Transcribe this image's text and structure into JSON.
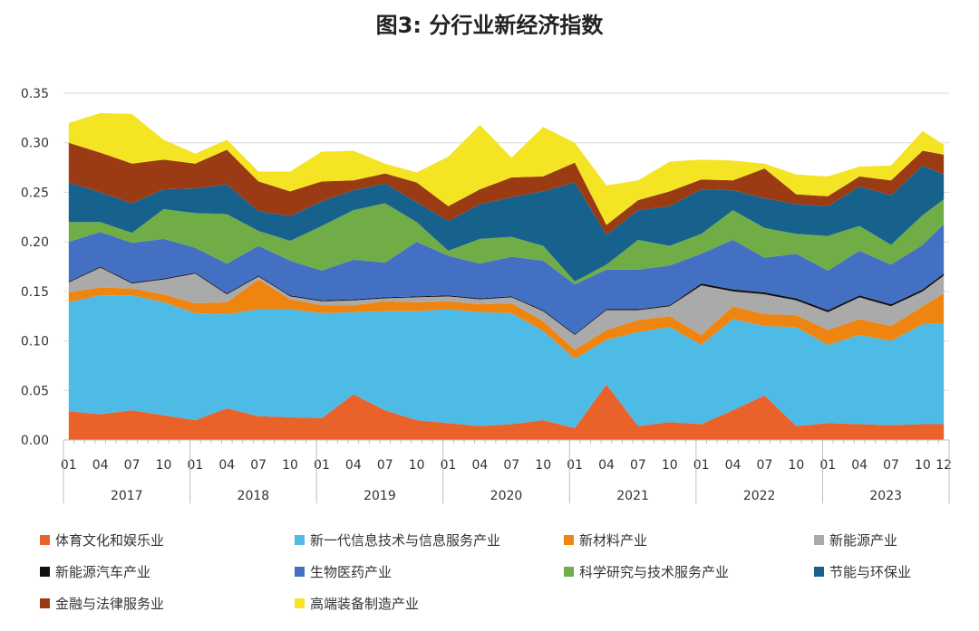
{
  "chart_data": {
    "type": "area",
    "stacked": true,
    "title": "图3: 分行业新经济指数",
    "ylim": [
      0,
      0.35
    ],
    "yticks": [
      "0.00",
      "0.05",
      "0.10",
      "0.15",
      "0.20",
      "0.25",
      "0.30",
      "0.35"
    ],
    "xtick_labels": [
      "01",
      "04",
      "07",
      "10",
      "01",
      "04",
      "07",
      "10",
      "01",
      "04",
      "07",
      "10",
      "01",
      "04",
      "07",
      "10",
      "01",
      "04",
      "07",
      "10",
      "01",
      "04",
      "07",
      "10",
      "01",
      "04",
      "07",
      "10",
      "12"
    ],
    "xtick_months": [
      0,
      3,
      6,
      9,
      12,
      15,
      18,
      21,
      24,
      27,
      30,
      33,
      36,
      39,
      42,
      45,
      48,
      51,
      54,
      57,
      60,
      63,
      66,
      69,
      72,
      75,
      78,
      81,
      83
    ],
    "years": [
      "2017",
      "2018",
      "2019",
      "2020",
      "2021",
      "2022",
      "2023"
    ],
    "grid": "horizontal",
    "legend_position": "bottom",
    "x_knots": [
      0,
      3,
      6,
      9,
      12,
      15,
      18,
      21,
      24,
      27,
      30,
      33,
      36,
      39,
      42,
      45,
      48,
      51,
      54,
      57,
      60,
      63,
      66,
      69,
      72,
      75,
      78,
      81,
      83
    ],
    "series": [
      {
        "name": "体育文化和娱乐业",
        "color": "#E8622A",
        "values": [
          0.029,
          0.026,
          0.03,
          0.025,
          0.02,
          0.032,
          0.024,
          0.023,
          0.022,
          0.046,
          0.03,
          0.02,
          0.017,
          0.014,
          0.016,
          0.02,
          0.012,
          0.056,
          0.014,
          0.018,
          0.016,
          0.03,
          0.045,
          0.014,
          0.017,
          0.016,
          0.015,
          0.016,
          0.016
        ]
      },
      {
        "name": "新一代信息技术与信息服务产业",
        "color": "#4EBAE6",
        "values": [
          0.11,
          0.12,
          0.116,
          0.114,
          0.108,
          0.095,
          0.108,
          0.109,
          0.106,
          0.083,
          0.1,
          0.11,
          0.115,
          0.115,
          0.112,
          0.09,
          0.07,
          0.045,
          0.095,
          0.096,
          0.08,
          0.092,
          0.07,
          0.1,
          0.079,
          0.09,
          0.085,
          0.101,
          0.102
        ]
      },
      {
        "name": "新材料产业",
        "color": "#EE8510",
        "values": [
          0.01,
          0.008,
          0.007,
          0.008,
          0.01,
          0.012,
          0.03,
          0.01,
          0.008,
          0.007,
          0.01,
          0.009,
          0.008,
          0.008,
          0.01,
          0.01,
          0.009,
          0.01,
          0.012,
          0.011,
          0.01,
          0.013,
          0.012,
          0.012,
          0.015,
          0.016,
          0.015,
          0.018,
          0.03
        ]
      },
      {
        "name": "新能源产业",
        "color": "#AAAAAA",
        "values": [
          0.01,
          0.02,
          0.005,
          0.015,
          0.03,
          0.008,
          0.003,
          0.003,
          0.004,
          0.005,
          0.003,
          0.005,
          0.005,
          0.005,
          0.006,
          0.01,
          0.015,
          0.02,
          0.01,
          0.01,
          0.05,
          0.015,
          0.02,
          0.015,
          0.018,
          0.022,
          0.02,
          0.015,
          0.018
        ]
      },
      {
        "name": "新能源汽车产业",
        "color": "#111111",
        "values": [
          0.001,
          0.001,
          0.001,
          0.001,
          0.001,
          0.001,
          0.001,
          0.001,
          0.001,
          0.001,
          0.001,
          0.001,
          0.001,
          0.001,
          0.001,
          0.001,
          0.001,
          0.001,
          0.001,
          0.001,
          0.002,
          0.002,
          0.002,
          0.002,
          0.002,
          0.002,
          0.002,
          0.002,
          0.002
        ]
      },
      {
        "name": "生物医药产业",
        "color": "#4470C4",
        "values": [
          0.04,
          0.035,
          0.04,
          0.04,
          0.025,
          0.03,
          0.03,
          0.035,
          0.03,
          0.04,
          0.035,
          0.055,
          0.04,
          0.035,
          0.04,
          0.05,
          0.05,
          0.04,
          0.04,
          0.04,
          0.03,
          0.05,
          0.035,
          0.045,
          0.04,
          0.045,
          0.04,
          0.045,
          0.05
        ]
      },
      {
        "name": "科学研究与技术服务产业",
        "color": "#70AD47",
        "values": [
          0.02,
          0.01,
          0.01,
          0.03,
          0.035,
          0.05,
          0.015,
          0.02,
          0.045,
          0.05,
          0.06,
          0.02,
          0.005,
          0.025,
          0.02,
          0.015,
          0.003,
          0.005,
          0.03,
          0.02,
          0.02,
          0.03,
          0.03,
          0.02,
          0.035,
          0.025,
          0.02,
          0.03,
          0.025
        ]
      },
      {
        "name": "节能与环保业",
        "color": "#17628C",
        "values": [
          0.04,
          0.03,
          0.03,
          0.02,
          0.025,
          0.03,
          0.02,
          0.025,
          0.025,
          0.02,
          0.02,
          0.02,
          0.03,
          0.035,
          0.04,
          0.055,
          0.1,
          0.03,
          0.03,
          0.04,
          0.045,
          0.02,
          0.03,
          0.03,
          0.03,
          0.04,
          0.05,
          0.05,
          0.025
        ]
      },
      {
        "name": "金融与法律服务业",
        "color": "#9B3B14",
        "values": [
          0.04,
          0.04,
          0.04,
          0.03,
          0.025,
          0.035,
          0.03,
          0.025,
          0.02,
          0.01,
          0.01,
          0.02,
          0.015,
          0.015,
          0.02,
          0.015,
          0.02,
          0.01,
          0.01,
          0.015,
          0.01,
          0.01,
          0.03,
          0.01,
          0.01,
          0.01,
          0.015,
          0.015,
          0.02
        ]
      },
      {
        "name": "高端装备制造产业",
        "color": "#F5E423",
        "values": [
          0.02,
          0.04,
          0.05,
          0.02,
          0.01,
          0.01,
          0.01,
          0.02,
          0.03,
          0.03,
          0.01,
          0.01,
          0.05,
          0.065,
          0.02,
          0.05,
          0.02,
          0.04,
          0.02,
          0.03,
          0.02,
          0.02,
          0.005,
          0.02,
          0.02,
          0.01,
          0.015,
          0.02,
          0.01
        ]
      }
    ]
  }
}
